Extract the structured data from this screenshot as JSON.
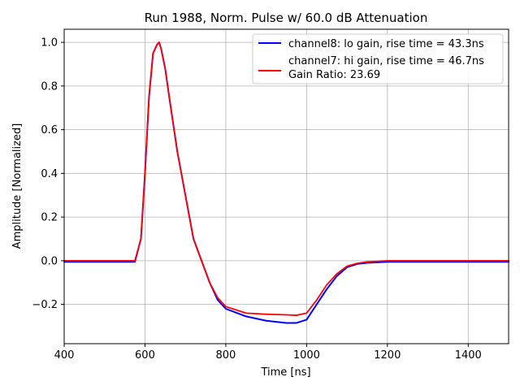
{
  "chart_data": {
    "type": "line",
    "title": "Run 1988, Norm. Pulse w/ 60.0 dB Attenuation",
    "xlabel": "Time [ns]",
    "ylabel": "Amplitude [Normalized]",
    "xlim": [
      400,
      1500
    ],
    "ylim": [
      -0.38,
      1.06
    ],
    "xticks": [
      400,
      600,
      800,
      1000,
      1200,
      1400
    ],
    "xtick_labels": [
      "400",
      "600",
      "800",
      "1000",
      "1200",
      "1400"
    ],
    "yticks": [
      -0.2,
      0.0,
      0.2,
      0.4,
      0.6,
      0.8,
      1.0
    ],
    "ytick_labels": [
      "−0.2",
      "0.0",
      "0.2",
      "0.4",
      "0.6",
      "0.8",
      "1.0"
    ],
    "grid": true,
    "legend_position": "top-right",
    "legend_extra": "Gain Ratio: 23.69",
    "series": [
      {
        "name": "channel8: lo gain, rise time = 43.3ns",
        "color": "#0000ff",
        "x": [
          400,
          450,
          500,
          550,
          575,
          590,
          600,
          610,
          620,
          630,
          635,
          640,
          650,
          660,
          680,
          700,
          720,
          740,
          760,
          780,
          800,
          850,
          900,
          950,
          975,
          1000,
          1025,
          1050,
          1075,
          1100,
          1125,
          1150,
          1200,
          1250,
          1300,
          1350,
          1400,
          1450,
          1500
        ],
        "y": [
          -0.005,
          -0.005,
          -0.005,
          -0.005,
          -0.005,
          0.1,
          0.4,
          0.75,
          0.95,
          0.99,
          1.0,
          0.97,
          0.88,
          0.75,
          0.5,
          0.3,
          0.1,
          0.0,
          -0.1,
          -0.18,
          -0.22,
          -0.255,
          -0.275,
          -0.285,
          -0.285,
          -0.27,
          -0.2,
          -0.13,
          -0.07,
          -0.03,
          -0.015,
          -0.01,
          -0.005,
          -0.005,
          -0.005,
          -0.005,
          -0.005,
          -0.005,
          -0.005
        ]
      },
      {
        "name": "channel7: hi gain, rise time = 46.7ns",
        "color": "#ff0000",
        "x": [
          400,
          450,
          500,
          550,
          575,
          590,
          600,
          610,
          620,
          630,
          635,
          640,
          650,
          660,
          680,
          700,
          720,
          740,
          760,
          780,
          800,
          850,
          900,
          950,
          975,
          1000,
          1025,
          1050,
          1075,
          1100,
          1125,
          1150,
          1200,
          1250,
          1300,
          1350,
          1400,
          1450,
          1500
        ],
        "y": [
          0.0,
          0.0,
          0.0,
          0.0,
          0.0,
          0.1,
          0.4,
          0.75,
          0.95,
          0.99,
          1.0,
          0.97,
          0.88,
          0.75,
          0.5,
          0.3,
          0.1,
          0.0,
          -0.1,
          -0.17,
          -0.21,
          -0.24,
          -0.245,
          -0.248,
          -0.25,
          -0.24,
          -0.18,
          -0.11,
          -0.06,
          -0.025,
          -0.012,
          -0.005,
          0.0,
          0.0,
          0.0,
          0.0,
          0.0,
          0.0,
          0.0
        ]
      }
    ]
  }
}
